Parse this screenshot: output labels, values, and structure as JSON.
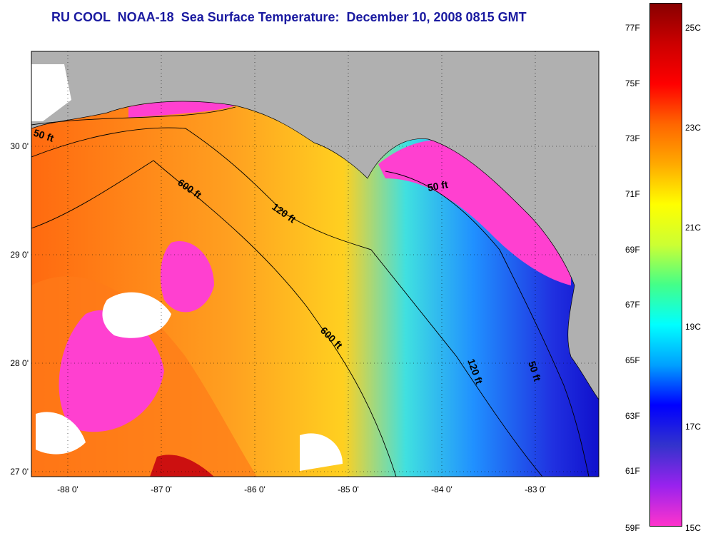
{
  "title": "RU COOL  NOAA-18  Sea Surface Temperature:  December 10, 2008 0815 GMT",
  "map": {
    "lon_ticks": [
      {
        "value": -88,
        "label": "-88 0'"
      },
      {
        "value": -87,
        "label": "-87 0'"
      },
      {
        "value": -86,
        "label": "-86 0'"
      },
      {
        "value": -85,
        "label": "-85 0'"
      },
      {
        "value": -84,
        "label": "-84 0'"
      },
      {
        "value": -83,
        "label": "-83 0'"
      }
    ],
    "lat_ticks": [
      {
        "value": 30,
        "label": "30 0'"
      },
      {
        "value": 29,
        "label": "29 0'"
      },
      {
        "value": 28,
        "label": "28 0'"
      },
      {
        "value": 27,
        "label": "27 0'"
      }
    ],
    "contour_labels": [
      "50 ft",
      "600 ft",
      "120 ft",
      "50 ft",
      "600 ft",
      "120 ft",
      "50 ft"
    ],
    "land_color": "#b0b0b0",
    "cloud_color": "#ffffff"
  },
  "colorbar": {
    "fahrenheit": [
      {
        "value": 77,
        "label": "77F"
      },
      {
        "value": 75,
        "label": "75F"
      },
      {
        "value": 73,
        "label": "73F"
      },
      {
        "value": 71,
        "label": "71F"
      },
      {
        "value": 69,
        "label": "69F"
      },
      {
        "value": 67,
        "label": "67F"
      },
      {
        "value": 65,
        "label": "65F"
      },
      {
        "value": 63,
        "label": "63F"
      },
      {
        "value": 61,
        "label": "61F"
      },
      {
        "value": 59,
        "label": "59F"
      }
    ],
    "celsius": [
      {
        "value": 25,
        "label": "25C"
      },
      {
        "value": 23,
        "label": "23C"
      },
      {
        "value": 21,
        "label": "21C"
      },
      {
        "value": 19,
        "label": "19C"
      },
      {
        "value": 17,
        "label": "17C"
      },
      {
        "value": 15,
        "label": "15C"
      }
    ],
    "colors": [
      "#ff33cc",
      "#9922ee",
      "#3333cc",
      "#0000ff",
      "#00a0ff",
      "#00ffff",
      "#44ff88",
      "#ccff33",
      "#ffff00",
      "#ffaa00",
      "#ff6600",
      "#ff0000",
      "#cc0000",
      "#880000"
    ]
  }
}
